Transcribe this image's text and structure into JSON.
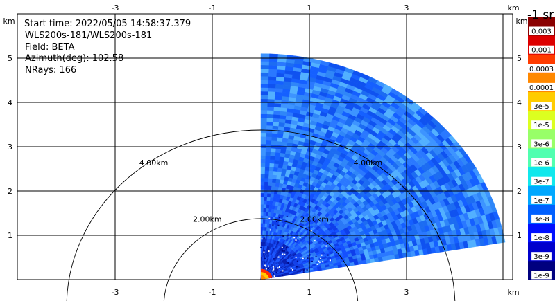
{
  "chart_data": {
    "type": "heatmap",
    "subtype": "radar-sector-ppi",
    "info": {
      "start_time": "Start time: 2022/05/05 14:58:37.379",
      "instrument": "WLS200s-181/WLS200s-181",
      "field": "Field: BETA",
      "azimuth": "Azimuth(deg): 102.58",
      "nrays": "NRays: 166"
    },
    "x_unit": "km",
    "y_unit": "km",
    "x_ticks": [
      -3,
      -1,
      1,
      3
    ],
    "y_ticks": [
      1,
      2,
      3,
      4,
      5
    ],
    "xlim": [
      -5,
      5
    ],
    "ylim": [
      0,
      5.3
    ],
    "grid": true,
    "range_rings": [
      {
        "radius_km": 2,
        "label": "2.00km"
      },
      {
        "radius_km": 4,
        "label": "4.00km"
      }
    ],
    "sector": {
      "azimuth_start_deg": 0,
      "azimuth_end_deg": 80.5,
      "max_range_km": 5.1
    },
    "colorbar": {
      "title": "-1 sr",
      "labels": [
        "1e-9",
        "3e-9",
        "1e-8",
        "3e-8",
        "1e-7",
        "3e-7",
        "1e-6",
        "3e-6",
        "1e-5",
        "3e-5",
        "0.0001",
        "0.0003",
        "0.001",
        "0.003"
      ],
      "colors": [
        "#00007f",
        "#0000cc",
        "#0010ff",
        "#0060ff",
        "#00a8ff",
        "#10e8ec",
        "#50ffb0",
        "#98ff68",
        "#dcff20",
        "#ffcc00",
        "#ff8800",
        "#ff3c00",
        "#dd0000",
        "#8a0000"
      ]
    },
    "field_colors": {
      "far": [
        "#1560ff",
        "#2a78ff",
        "#1c6cf2",
        "#3d94ff",
        "#2f86f8",
        "#0f52f0",
        "#52b0ff"
      ],
      "mid": [
        "#1450ff",
        "#1f64ff",
        "#2a78f6",
        "#0e3eea",
        "#3a8cff"
      ],
      "near": [
        "#0a2ec8",
        "#1240e8",
        "#081fb4",
        "#1a56ff"
      ],
      "origin": [
        "#ff2a00",
        "#ffcc00",
        "#ff8800"
      ]
    }
  }
}
